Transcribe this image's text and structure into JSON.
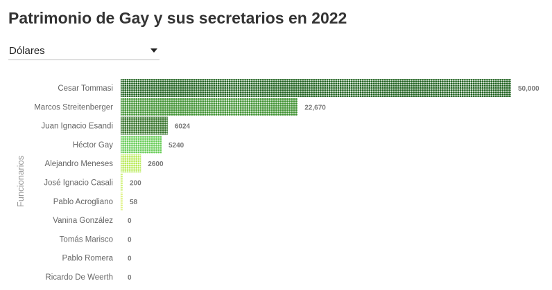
{
  "header": {
    "title": "Patrimonio de Gay y sus secretarios en 2022"
  },
  "currency_select": {
    "selected": "Dólares"
  },
  "chart_data": {
    "type": "bar",
    "orientation": "horizontal",
    "ylabel": "Funcionarios",
    "categories": [
      "Cesar Tommasi",
      "Marcos Streitenberger",
      "Juan Ignacio Esandi",
      "Héctor Gay",
      "Alejandro Meneses",
      "José Ignacio Casali",
      "Pablo Acrogliano",
      "Vanina González",
      "Tomás Marisco",
      "Pablo Romera",
      "Ricardo De Weerth"
    ],
    "values": [
      50000,
      22670,
      6024,
      5240,
      2600,
      200,
      58,
      0,
      0,
      0,
      0
    ],
    "value_labels": [
      "50,000",
      "22,670",
      "6024",
      "5240",
      "2600",
      "200",
      "58",
      "0",
      "0",
      "0",
      "0"
    ],
    "xlim": [
      0,
      50000
    ],
    "colors": [
      "#1a5e1a",
      "#3a8f2c",
      "#2e6e22",
      "#66cc55",
      "#b7ea55",
      "#c5ee5a",
      "#d8f06a",
      "#d8f06a",
      "#d8f06a",
      "#d8f06a",
      "#d8f06a"
    ]
  }
}
